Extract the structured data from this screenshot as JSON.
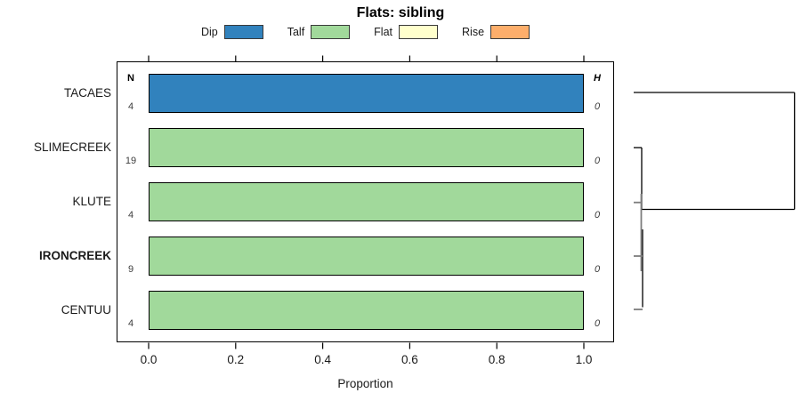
{
  "title": "Flats: sibling",
  "legend": [
    {
      "label": "Dip",
      "color": "#3182bd"
    },
    {
      "label": "Talf",
      "color": "#a1d99b"
    },
    {
      "label": "Flat",
      "color": "#ffffcc"
    },
    {
      "label": "Rise",
      "color": "#fdae6b"
    }
  ],
  "columns": {
    "n_header": "N",
    "h_header": "H"
  },
  "x_axis": {
    "label": "Proportion",
    "tick_labels": [
      "0.0",
      "0.2",
      "0.4",
      "0.6",
      "0.8",
      "1.0"
    ],
    "ticks": [
      0.0,
      0.2,
      0.4,
      0.6,
      0.8,
      1.0
    ]
  },
  "chart_data": {
    "type": "bar",
    "orientation": "horizontal",
    "title": "Flats: sibling",
    "xlabel": "Proportion",
    "xlim": [
      0.0,
      1.0
    ],
    "categories": [
      "TACAES",
      "SLIMECREEK",
      "KLUTE",
      "IRONCREEK",
      "CENTUU"
    ],
    "bold_categories": [
      "IRONCREEK"
    ],
    "n_values": [
      4,
      19,
      4,
      9,
      4
    ],
    "h_values": [
      0,
      0,
      0,
      0,
      0
    ],
    "series": [
      {
        "name": "Dip",
        "color": "#3182bd",
        "values": [
          1,
          0,
          0,
          0,
          0
        ]
      },
      {
        "name": "Talf",
        "color": "#a1d99b",
        "values": [
          0,
          1,
          1,
          1,
          1
        ]
      },
      {
        "name": "Flat",
        "color": "#ffffcc",
        "values": [
          0,
          0,
          0,
          0,
          0
        ]
      },
      {
        "name": "Rise",
        "color": "#fdae6b",
        "values": [
          0,
          0,
          0,
          0,
          0
        ]
      }
    ],
    "legend_position": "top",
    "dendrogram": {
      "side": "right",
      "leaf_order": [
        "TACAES",
        "SLIMECREEK",
        "KLUTE",
        "IRONCREEK",
        "CENTUU"
      ],
      "merges": [
        {
          "members": [
            "IRONCREEK",
            "CENTUU"
          ],
          "height": 0
        },
        {
          "members": [
            "KLUTE",
            "IRONCREEK",
            "CENTUU"
          ],
          "height": 0
        },
        {
          "members": [
            "SLIMECREEK",
            "KLUTE",
            "IRONCREEK",
            "CENTUU"
          ],
          "height": 0
        },
        {
          "members": [
            "TACAES",
            "SLIMECREEK",
            "KLUTE",
            "IRONCREEK",
            "CENTUU"
          ],
          "height": null,
          "note": "root join drawn at right panel edge"
        }
      ]
    }
  }
}
